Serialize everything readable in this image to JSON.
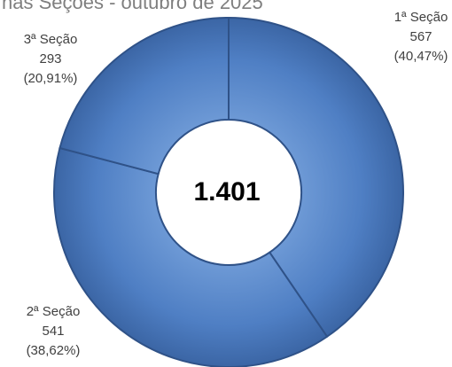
{
  "chart_data": {
    "type": "donut",
    "title": "nas Seções - outubro de 2025",
    "categories": [
      "1ª Seção",
      "2ª Seção",
      "3ª Seção"
    ],
    "values": [
      567,
      541,
      293
    ],
    "percentages": [
      40.47,
      38.62,
      20.91
    ],
    "percentage_labels": [
      "(40,47%)",
      "(38,62%)",
      "(20,91%)"
    ],
    "total": {
      "value": 1401,
      "label": "1.401"
    },
    "color": "#4f7fc4"
  }
}
